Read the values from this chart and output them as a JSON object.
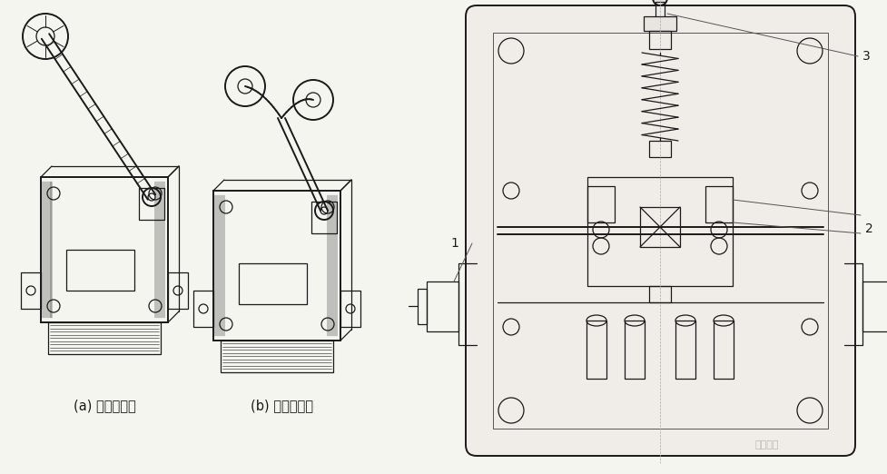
{
  "bg_color": "#f5f5f0",
  "line_color": "#1a1a1a",
  "label_a": "(a) 单轮旋转式",
  "label_b": "(b) 双轮旋转式",
  "label_1": "1",
  "label_2": "2",
  "label_3": "3",
  "fig_width": 9.78,
  "fig_height": 5.22,
  "dpi": 100,
  "watermark": "电工之家"
}
